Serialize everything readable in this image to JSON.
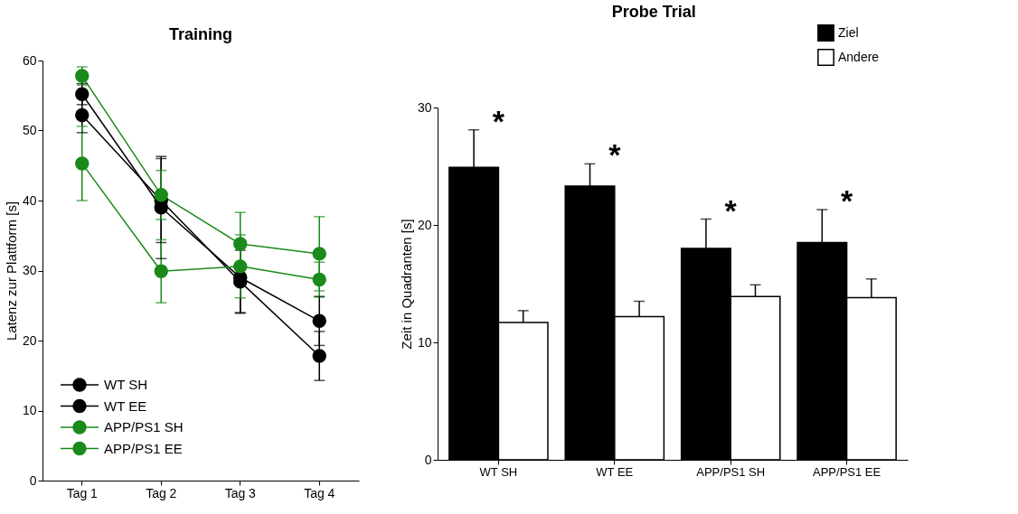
{
  "chart_data": [
    {
      "type": "line",
      "title": "Training",
      "ylabel": "Latenz zur Plattform [s]",
      "categories": [
        "Tag 1",
        "Tag 2",
        "Tag 3",
        "Tag 4"
      ],
      "ylim": [
        0,
        60
      ],
      "yticks": [
        0,
        10,
        20,
        30,
        40,
        50,
        60
      ],
      "grid": false,
      "legend": "bottom left",
      "marker": "circle",
      "line_style": "solid",
      "series": [
        {
          "name": "WT SH",
          "color": "#000000",
          "values": [
            55.2,
            39.0,
            29.0,
            22.8
          ],
          "errors": [
            1.5,
            7.3,
            5.0,
            3.5
          ]
        },
        {
          "name": "WT EE",
          "color": "#000000",
          "values": [
            52.2,
            40.0,
            28.4,
            17.8
          ],
          "errors": [
            2.5,
            6.0,
            4.5,
            3.5
          ]
        },
        {
          "name": "APP/PS1 SH",
          "color": "#1a8a1a",
          "values": [
            57.8,
            40.8,
            33.8,
            32.4
          ],
          "errors": [
            1.3,
            3.5,
            4.5,
            5.3
          ]
        },
        {
          "name": "APP/PS1 EE",
          "color": "#1a8a1a",
          "values": [
            45.3,
            29.9,
            30.6,
            28.7
          ],
          "errors": [
            5.3,
            4.5,
            4.5,
            2.5
          ]
        }
      ]
    },
    {
      "type": "bar",
      "title": "Probe Trial",
      "ylabel": "Zeit in Quadranten [s]",
      "categories": [
        "WT SH",
        "WT EE",
        "APP/PS1 SH",
        "APP/PS1 EE"
      ],
      "ylim": [
        0,
        30
      ],
      "yticks": [
        0,
        10,
        20,
        30
      ],
      "grid": false,
      "legend": "top right",
      "series": [
        {
          "name": "Ziel",
          "color": "#000000",
          "values": [
            24.9,
            23.3,
            18.0,
            18.5
          ],
          "errors": [
            3.2,
            1.9,
            2.5,
            2.8
          ]
        },
        {
          "name": "Andere",
          "color": "#ffffff",
          "values": [
            11.7,
            12.2,
            13.9,
            13.8
          ],
          "errors": [
            1.0,
            1.3,
            1.0,
            1.6
          ]
        }
      ],
      "annotations": [
        "*",
        "*",
        "*",
        "*"
      ]
    }
  ]
}
